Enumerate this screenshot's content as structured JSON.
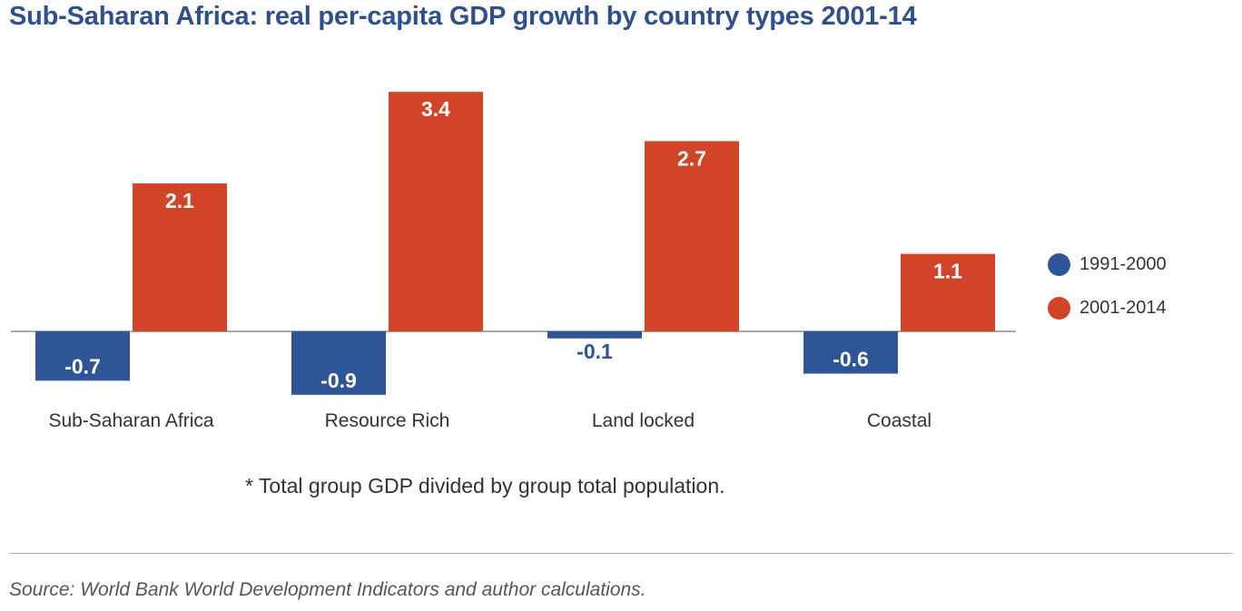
{
  "title": "Sub-Saharan Africa: real per-capita GDP growth by country types 2001-14",
  "footnote": "* Total group GDP divided by group total population.",
  "source": "Source: World Bank World Development Indicators and author calculations.",
  "chart_data": {
    "type": "bar",
    "title": "Sub-Saharan Africa: real per-capita GDP growth by country types 2001-14",
    "categories": [
      "Sub-Saharan Africa",
      "Resource Rich",
      "Land locked",
      "Coastal"
    ],
    "series": [
      {
        "name": "1991-2000",
        "values": [
          -0.7,
          -0.9,
          -0.1,
          -0.6
        ],
        "color": "#2e5597"
      },
      {
        "name": "2001-2014",
        "values": [
          2.1,
          3.4,
          2.7,
          1.1
        ],
        "color": "#d24427"
      }
    ],
    "ylim": [
      -0.9,
      3.4
    ],
    "grid": false,
    "legend": "right",
    "data_labels": true
  }
}
